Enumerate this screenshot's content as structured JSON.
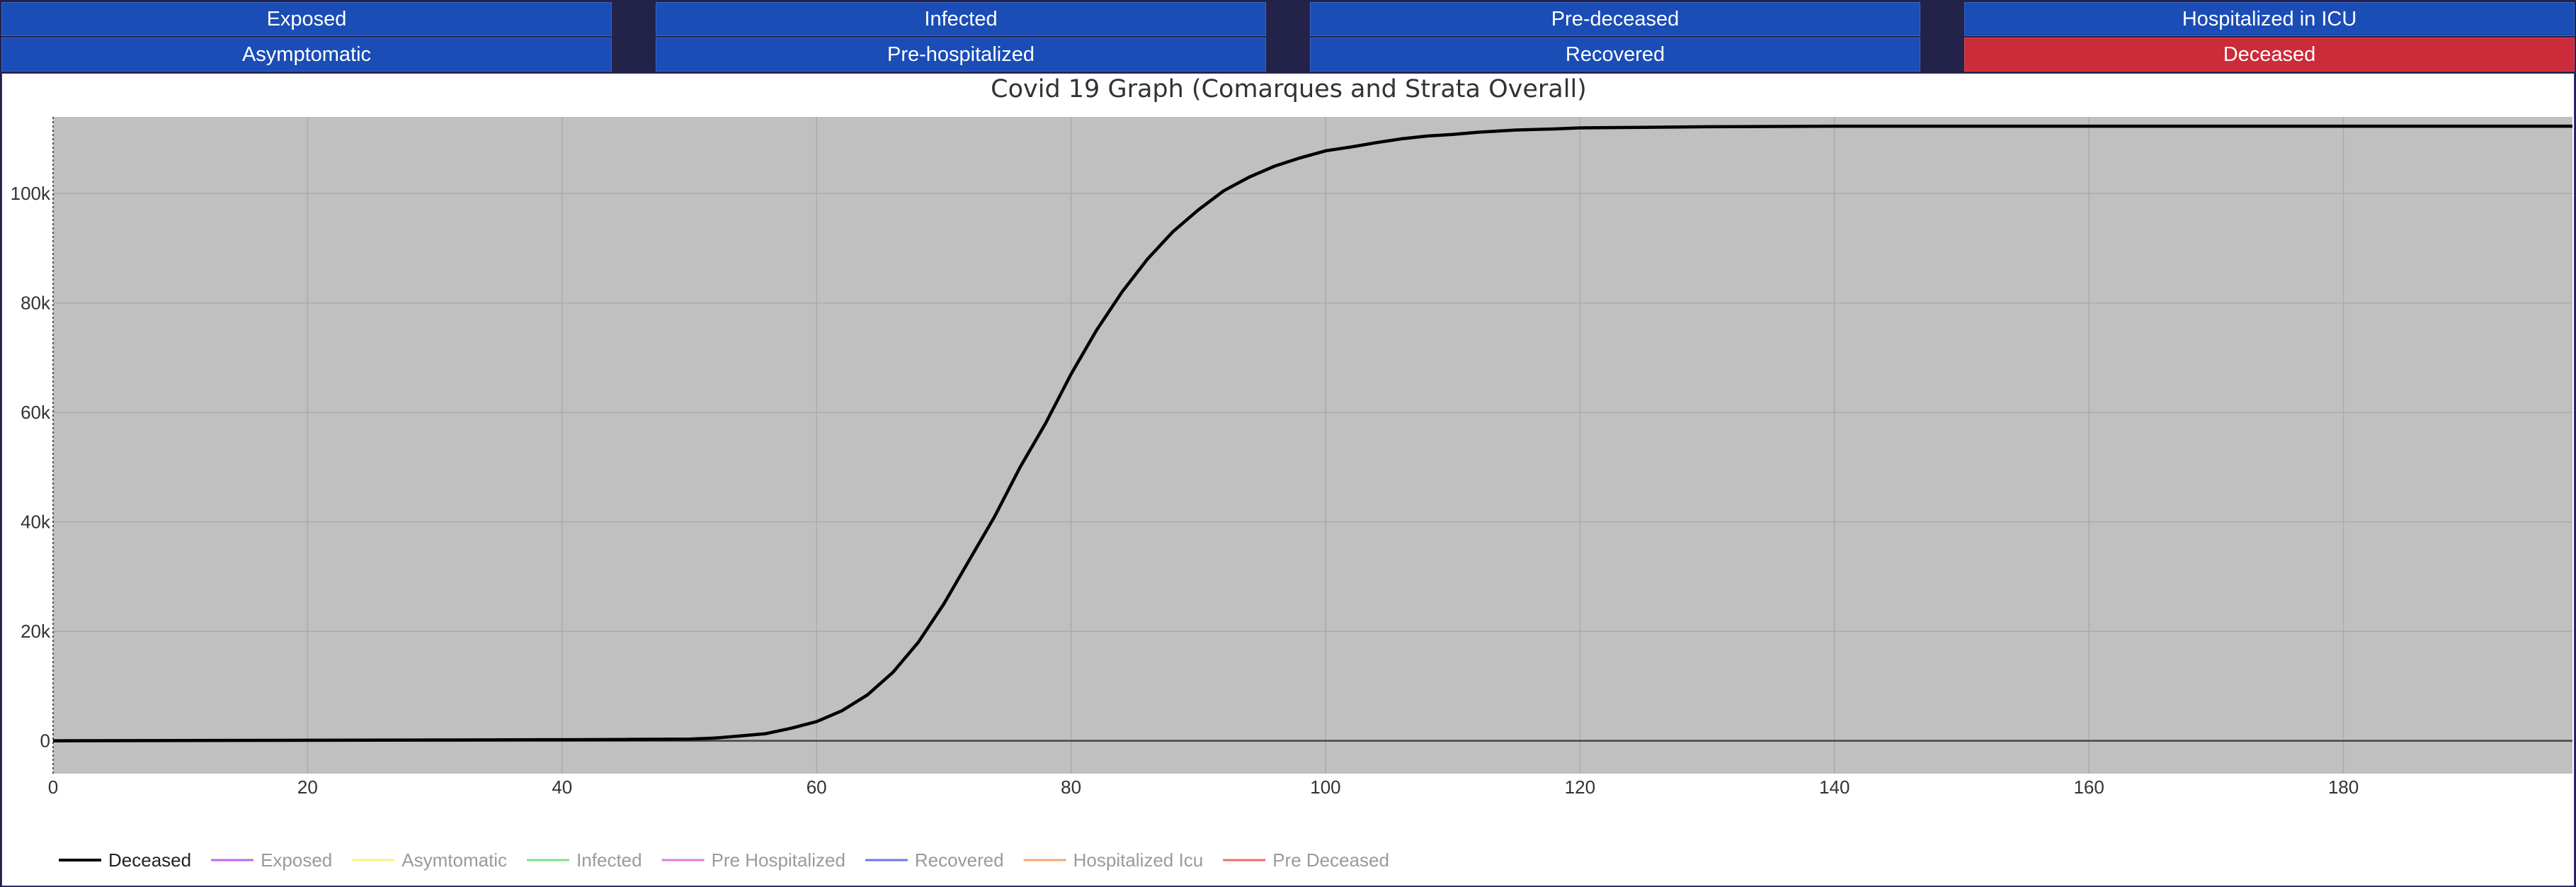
{
  "buttons": {
    "row1": [
      "Exposed",
      "Infected",
      "Pre-deceased",
      "Hospitalized in ICU"
    ],
    "row2": [
      "Asymptomatic",
      "Pre-hospitalized",
      "Recovered",
      "Deceased"
    ],
    "active": "Deceased"
  },
  "chart_data": {
    "type": "line",
    "title": "Covid 19 Graph (Comarques and Strata Overall)",
    "xlabel": "",
    "ylabel": "",
    "xlim": [
      0,
      198
    ],
    "ylim": [
      -6000,
      114000
    ],
    "x_ticks": [
      0,
      20,
      40,
      60,
      80,
      100,
      120,
      140,
      160,
      180
    ],
    "y_ticks": [
      0,
      20000,
      40000,
      60000,
      80000,
      100000
    ],
    "y_tick_labels": [
      "0",
      "20k",
      "40k",
      "60k",
      "80k",
      "100k"
    ],
    "grid": true,
    "plot_background": "#c0c0c0",
    "legend_position": "bottom-left",
    "series": [
      {
        "name": "Deceased",
        "color": "#000000",
        "visible": true,
        "x": [
          0,
          10,
          20,
          30,
          40,
          45,
          50,
          52,
          54,
          56,
          58,
          60,
          62,
          64,
          66,
          68,
          70,
          72,
          74,
          76,
          78,
          80,
          82,
          84,
          86,
          88,
          90,
          92,
          94,
          96,
          98,
          100,
          102,
          104,
          106,
          108,
          110,
          112,
          115,
          118,
          120,
          125,
          130,
          140,
          150,
          160,
          170,
          180,
          190,
          198
        ],
        "y": [
          0,
          50,
          100,
          150,
          200,
          250,
          300,
          500,
          900,
          1300,
          2300,
          3500,
          5500,
          8400,
          12500,
          18000,
          25000,
          33000,
          41000,
          50000,
          58000,
          67000,
          75000,
          82000,
          88000,
          93000,
          97000,
          100500,
          103000,
          105000,
          106500,
          107800,
          108500,
          109300,
          110000,
          110500,
          110800,
          111200,
          111600,
          111800,
          112000,
          112100,
          112200,
          112300,
          112300,
          112300,
          112300,
          112300,
          112300,
          112300
        ]
      },
      {
        "name": "Exposed",
        "color": "#c466e8",
        "visible": false
      },
      {
        "name": "Asymtomatic",
        "color": "#f4f38a",
        "visible": false
      },
      {
        "name": "Infected",
        "color": "#7fe07f",
        "visible": false
      },
      {
        "name": "Pre Hospitalized",
        "color": "#e57ae0",
        "visible": false
      },
      {
        "name": "Recovered",
        "color": "#7474e6",
        "visible": false
      },
      {
        "name": "Hospitalized Icu",
        "color": "#f2a873",
        "visible": false
      },
      {
        "name": "Pre Deceased",
        "color": "#ef6c6c",
        "visible": false
      }
    ]
  }
}
